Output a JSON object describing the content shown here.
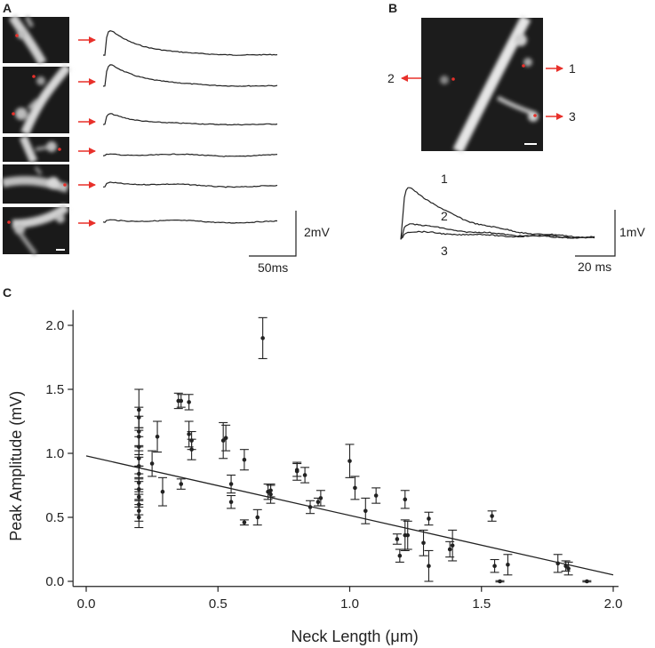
{
  "panels": {
    "a": {
      "label": "A",
      "scale_v": "2mV",
      "scale_t": "50ms"
    },
    "b": {
      "label": "B",
      "spine_labels": [
        "1",
        "2",
        "3"
      ],
      "trace_labels": [
        "1",
        "2",
        "3"
      ],
      "scale_v": "1mV",
      "scale_t": "20 ms"
    },
    "c": {
      "label": "C"
    }
  },
  "colors": {
    "arrow": "#e8302a",
    "ink": "#222222"
  },
  "chart_data": {
    "type": "scatter",
    "xlabel": "Neck Length (μm)",
    "ylabel": "Peak Amplitude (mV)",
    "xlim": [
      -0.05,
      2.02
    ],
    "ylim": [
      -0.04,
      2.12
    ],
    "xticks": [
      "0.0",
      "0.5",
      "1.0",
      "1.5",
      "2.0"
    ],
    "xtick_values": [
      0.0,
      0.5,
      1.0,
      1.5,
      2.0
    ],
    "yticks": [
      "0.0",
      "0.5",
      "1.0",
      "1.5",
      "2.0"
    ],
    "ytick_values": [
      0.0,
      0.5,
      1.0,
      1.5,
      2.0
    ],
    "grid": false,
    "fit_line": {
      "x": [
        0.0,
        2.0
      ],
      "y": [
        0.98,
        0.05
      ]
    },
    "points": [
      {
        "x": 0.2,
        "y": 1.34,
        "e": 0.16
      },
      {
        "x": 0.2,
        "y": 1.28,
        "e": 0.08
      },
      {
        "x": 0.2,
        "y": 1.17,
        "e": 0.12
      },
      {
        "x": 0.2,
        "y": 1.13,
        "e": 0.07
      },
      {
        "x": 0.2,
        "y": 1.05,
        "e": 0.08
      },
      {
        "x": 0.2,
        "y": 0.96,
        "e": 0.06
      },
      {
        "x": 0.2,
        "y": 0.9,
        "e": 0.09
      },
      {
        "x": 0.2,
        "y": 0.84,
        "e": 0.06
      },
      {
        "x": 0.2,
        "y": 0.77,
        "e": 0.07
      },
      {
        "x": 0.2,
        "y": 0.72,
        "e": 0.08
      },
      {
        "x": 0.2,
        "y": 0.66,
        "e": 0.06
      },
      {
        "x": 0.2,
        "y": 0.6,
        "e": 0.08
      },
      {
        "x": 0.2,
        "y": 0.55,
        "e": 0.08
      },
      {
        "x": 0.2,
        "y": 0.5,
        "e": 0.08
      },
      {
        "x": 0.25,
        "y": 0.92,
        "e": 0.1
      },
      {
        "x": 0.27,
        "y": 1.13,
        "e": 0.12
      },
      {
        "x": 0.29,
        "y": 0.7,
        "e": 0.11
      },
      {
        "x": 0.35,
        "y": 1.41,
        "e": 0.06
      },
      {
        "x": 0.36,
        "y": 0.76,
        "e": 0.04
      },
      {
        "x": 0.36,
        "y": 1.41,
        "e": 0.05
      },
      {
        "x": 0.39,
        "y": 1.4,
        "e": 0.06
      },
      {
        "x": 0.39,
        "y": 1.15,
        "e": 0.1
      },
      {
        "x": 0.4,
        "y": 1.1,
        "e": 0.07
      },
      {
        "x": 0.4,
        "y": 1.03,
        "e": 0.08
      },
      {
        "x": 0.52,
        "y": 1.1,
        "e": 0.14
      },
      {
        "x": 0.53,
        "y": 1.12,
        "e": 0.1
      },
      {
        "x": 0.55,
        "y": 0.76,
        "e": 0.07
      },
      {
        "x": 0.55,
        "y": 0.62,
        "e": 0.05
      },
      {
        "x": 0.6,
        "y": 0.46,
        "e": 0.02
      },
      {
        "x": 0.6,
        "y": 0.95,
        "e": 0.08
      },
      {
        "x": 0.65,
        "y": 0.5,
        "e": 0.06
      },
      {
        "x": 0.67,
        "y": 1.9,
        "e": 0.16
      },
      {
        "x": 0.69,
        "y": 0.7,
        "e": 0.06
      },
      {
        "x": 0.7,
        "y": 0.71,
        "e": 0.05
      },
      {
        "x": 0.7,
        "y": 0.68,
        "e": 0.07
      },
      {
        "x": 0.8,
        "y": 0.86,
        "e": 0.07
      },
      {
        "x": 0.8,
        "y": 0.87,
        "e": 0.05
      },
      {
        "x": 0.83,
        "y": 0.83,
        "e": 0.06
      },
      {
        "x": 0.85,
        "y": 0.58,
        "e": 0.05
      },
      {
        "x": 0.88,
        "y": 0.62,
        "e": 0.03
      },
      {
        "x": 0.89,
        "y": 0.65,
        "e": 0.06
      },
      {
        "x": 1.0,
        "y": 0.94,
        "e": 0.13
      },
      {
        "x": 1.02,
        "y": 0.73,
        "e": 0.09
      },
      {
        "x": 1.06,
        "y": 0.55,
        "e": 0.1
      },
      {
        "x": 1.1,
        "y": 0.67,
        "e": 0.06
      },
      {
        "x": 1.18,
        "y": 0.33,
        "e": 0.04
      },
      {
        "x": 1.19,
        "y": 0.2,
        "e": 0.05
      },
      {
        "x": 1.21,
        "y": 0.64,
        "e": 0.07
      },
      {
        "x": 1.21,
        "y": 0.36,
        "e": 0.12
      },
      {
        "x": 1.22,
        "y": 0.36,
        "e": 0.11
      },
      {
        "x": 1.28,
        "y": 0.3,
        "e": 0.1
      },
      {
        "x": 1.3,
        "y": 0.49,
        "e": 0.05
      },
      {
        "x": 1.3,
        "y": 0.12,
        "e": 0.12
      },
      {
        "x": 1.38,
        "y": 0.25,
        "e": 0.06
      },
      {
        "x": 1.39,
        "y": 0.28,
        "e": 0.12
      },
      {
        "x": 1.54,
        "y": 0.51,
        "e": 0.04
      },
      {
        "x": 1.55,
        "y": 0.12,
        "e": 0.05
      },
      {
        "x": 1.57,
        "y": 0.0,
        "e": 0.005
      },
      {
        "x": 1.6,
        "y": 0.13,
        "e": 0.08
      },
      {
        "x": 1.79,
        "y": 0.14,
        "e": 0.07
      },
      {
        "x": 1.82,
        "y": 0.12,
        "e": 0.04
      },
      {
        "x": 1.83,
        "y": 0.1,
        "e": 0.05
      },
      {
        "x": 1.9,
        "y": 0.0,
        "e": 0.005
      }
    ]
  }
}
